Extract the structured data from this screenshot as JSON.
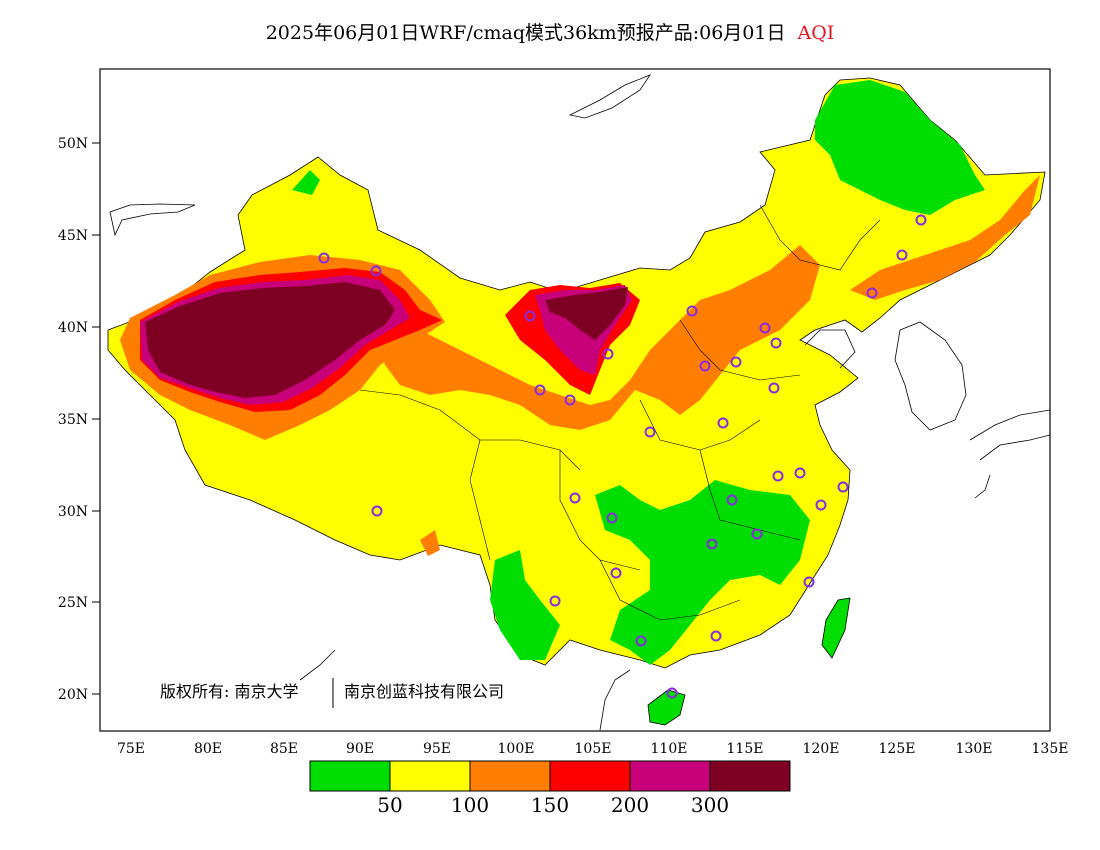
{
  "title": {
    "main": "2025年06月01日WRF/cmaq模式36km预报产品:06月01日",
    "variable": "AQI",
    "variable_color": "#e8141e"
  },
  "axes": {
    "lat_labels": [
      "50N",
      "45N",
      "40N",
      "35N",
      "30N",
      "25N",
      "20N"
    ],
    "lon_labels": [
      "75E",
      "80E",
      "85E",
      "90E",
      "95E",
      "100E",
      "105E",
      "110E",
      "115E",
      "120E",
      "125E",
      "130E",
      "135E"
    ]
  },
  "copyright": {
    "left": "版权所有: 南京大学",
    "right": "南京创蓝科技有限公司"
  },
  "legend": {
    "colors": [
      "#00dd00",
      "#ffff00",
      "#ff7e00",
      "#ff0000",
      "#c8007a",
      "#7e0023"
    ],
    "labels": [
      "50",
      "100",
      "150",
      "200",
      "300"
    ]
  }
}
